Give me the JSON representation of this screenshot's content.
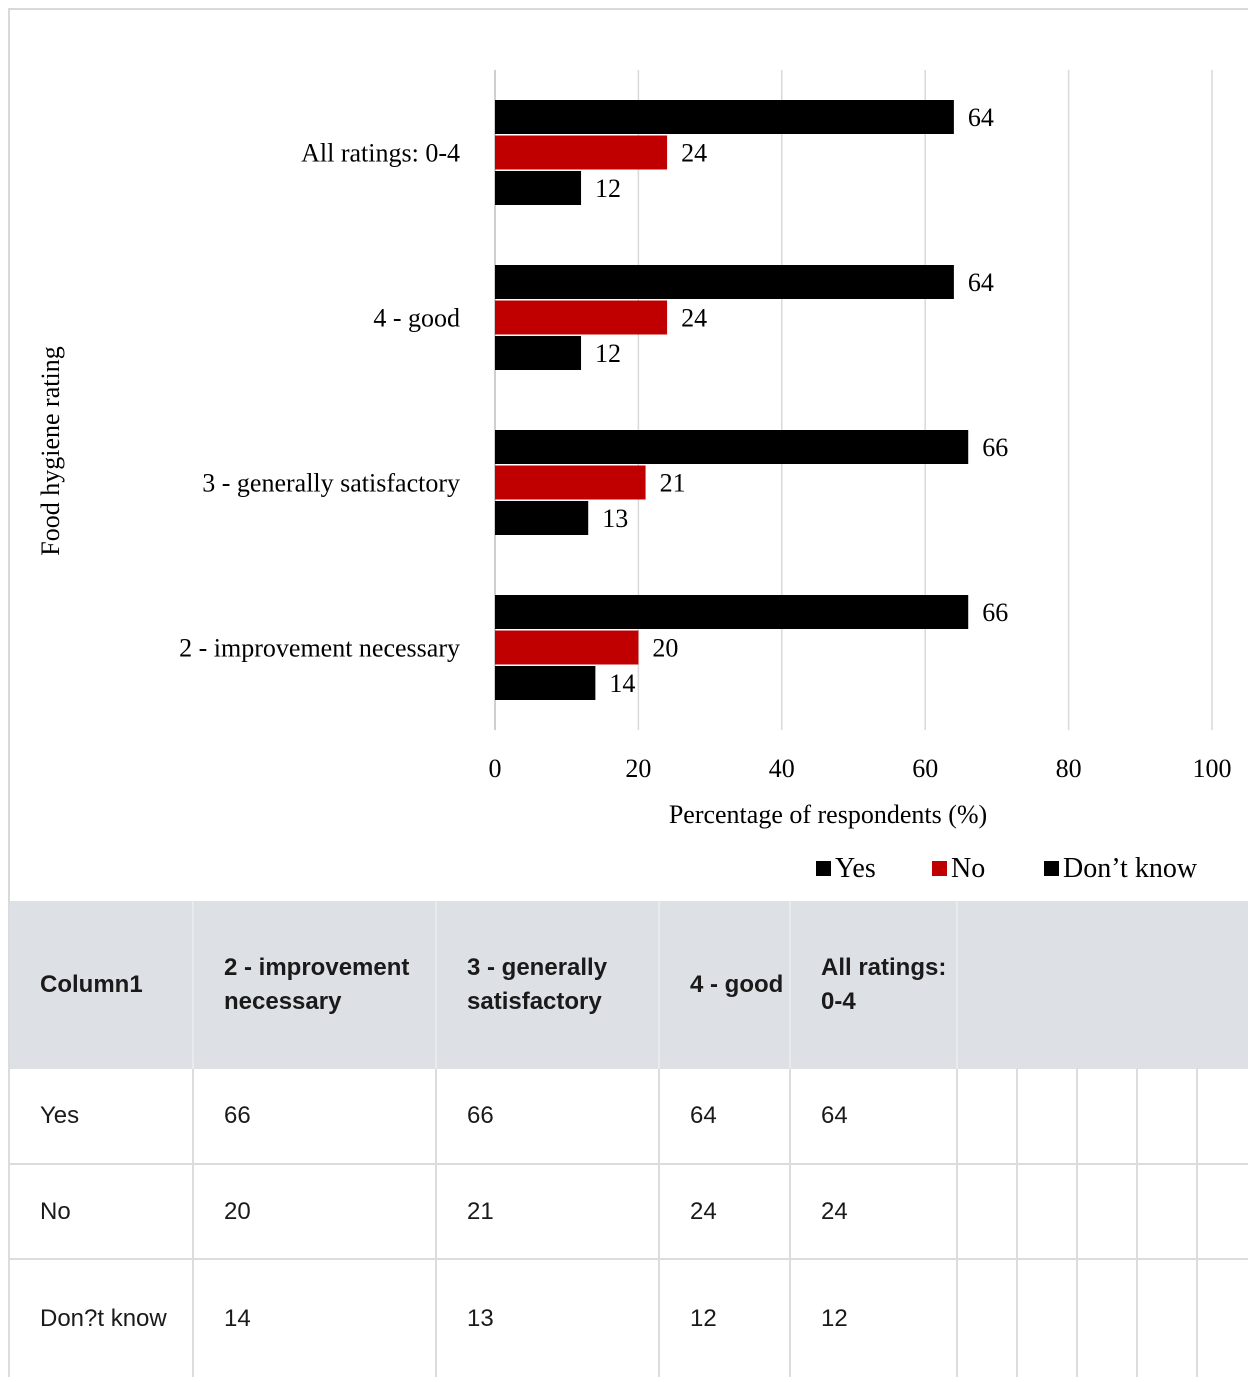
{
  "chart_data": {
    "type": "bar",
    "orientation": "horizontal",
    "categories": [
      "2 - improvement necessary",
      "3 - generally satisfactory",
      "4 - good",
      "All ratings: 0-4"
    ],
    "series": [
      {
        "name": "Yes",
        "values": [
          66,
          66,
          64,
          64
        ],
        "color": "#000000"
      },
      {
        "name": "No",
        "values": [
          20,
          21,
          24,
          24
        ],
        "color": "#c00000"
      },
      {
        "name": "Don’t know",
        "values": [
          14,
          13,
          12,
          12
        ],
        "color": "#000000"
      }
    ],
    "xlabel": "Percentage of respondents (%)",
    "ylabel": "Food hygiene rating",
    "xlim": [
      0,
      100
    ],
    "xticks": [
      0,
      20,
      40,
      60,
      80,
      100
    ],
    "grid": "vertical",
    "data_labels": true,
    "legend": {
      "position": "bottom-right",
      "entries": [
        "Yes",
        "No",
        "Don’t know"
      ]
    }
  },
  "table": {
    "headers": [
      "Column1",
      "2 - improvement necessary",
      "3 - generally satisfactory",
      "4 - good",
      "All ratings: 0-4"
    ],
    "rows": [
      [
        "Yes",
        "66",
        "66",
        "64",
        "64"
      ],
      [
        "No",
        "20",
        "21",
        "24",
        "24"
      ],
      [
        "Don?t know",
        "14",
        "13",
        "12",
        "12"
      ]
    ]
  }
}
